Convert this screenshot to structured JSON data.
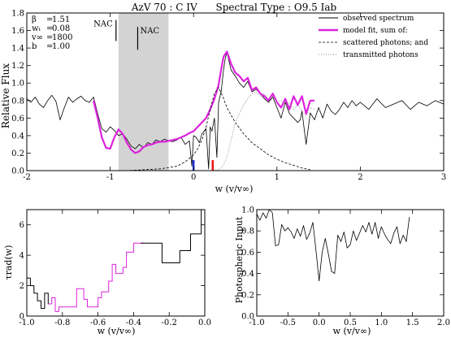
{
  "chart_data": [
    {
      "type": "line",
      "title": "AzV 70 : C IV      Spectral Type : O9.5 Iab",
      "xlabel": "w (v/v∞)",
      "ylabel": "Relative Flux",
      "xlim": [
        -2,
        3
      ],
      "ylim": [
        0,
        1.8
      ],
      "xticks": [
        -2,
        -1,
        0,
        1,
        2,
        3
      ],
      "yticks": [
        0.0,
        0.2,
        0.4,
        0.6,
        0.8,
        1.0,
        1.2,
        1.4,
        1.6,
        1.8
      ],
      "grid": false,
      "legend_position": "top-right",
      "parameters": [
        {
          "name": "β",
          "value": "1.51"
        },
        {
          "name": "wₜ",
          "value": "0.08"
        },
        {
          "name": "v∞",
          "value": "1800"
        },
        {
          "name": "b",
          "value": "1.00"
        }
      ],
      "shaded_region": {
        "x": [
          -0.9,
          -0.3
        ],
        "color": "#d3d3d3"
      },
      "annotations": [
        {
          "text": "NAC",
          "x": -0.93,
          "line_y": [
            1.48,
            1.72
          ]
        },
        {
          "text": "NAC",
          "x": -0.67,
          "line_y": [
            1.38,
            1.64
          ]
        }
      ],
      "markers": [
        {
          "x": 0.0,
          "y": [
            0.0,
            0.12
          ],
          "color": "#2233dd"
        },
        {
          "x": 0.23,
          "y": [
            0.0,
            0.12
          ],
          "color": "#ee1111"
        }
      ],
      "series": [
        {
          "name": "observed spectrum",
          "style": "solid",
          "color": "#000000",
          "x": [
            -2.0,
            -1.95,
            -1.9,
            -1.85,
            -1.8,
            -1.75,
            -1.7,
            -1.65,
            -1.6,
            -1.55,
            -1.5,
            -1.45,
            -1.4,
            -1.35,
            -1.3,
            -1.25,
            -1.2,
            -1.15,
            -1.1,
            -1.05,
            -1.0,
            -0.95,
            -0.9,
            -0.85,
            -0.8,
            -0.75,
            -0.7,
            -0.65,
            -0.6,
            -0.55,
            -0.5,
            -0.45,
            -0.4,
            -0.35,
            -0.3,
            -0.25,
            -0.2,
            -0.15,
            -0.1,
            -0.05,
            -0.02,
            0.0,
            0.03,
            0.07,
            0.1,
            0.15,
            0.18,
            0.2,
            0.22,
            0.25,
            0.28,
            0.3,
            0.33,
            0.36,
            0.38,
            0.4,
            0.45,
            0.5,
            0.55,
            0.6,
            0.65,
            0.7,
            0.75,
            0.8,
            0.85,
            0.9,
            0.95,
            1.0,
            1.05,
            1.1,
            1.15,
            1.2,
            1.25,
            1.28,
            1.3,
            1.35,
            1.4,
            1.45,
            1.5,
            1.55,
            1.6,
            1.65,
            1.7,
            1.75,
            1.8,
            1.85,
            1.9,
            1.95,
            2.0,
            2.1,
            2.2,
            2.3,
            2.4,
            2.5,
            2.6,
            2.7,
            2.8,
            2.9,
            3.0
          ],
          "y": [
            0.82,
            0.78,
            0.84,
            0.76,
            0.72,
            0.8,
            0.86,
            0.79,
            0.58,
            0.72,
            0.84,
            0.78,
            0.82,
            0.85,
            0.8,
            0.78,
            0.84,
            0.65,
            0.48,
            0.44,
            0.5,
            0.46,
            0.4,
            0.42,
            0.36,
            0.28,
            0.25,
            0.3,
            0.26,
            0.32,
            0.3,
            0.35,
            0.33,
            0.36,
            0.34,
            0.33,
            0.35,
            0.38,
            0.3,
            0.34,
            0.05,
            0.4,
            0.38,
            0.32,
            0.42,
            0.48,
            0.02,
            0.5,
            0.45,
            0.6,
            0.15,
            0.78,
            0.9,
            1.15,
            1.28,
            1.35,
            1.15,
            1.08,
            1.0,
            0.95,
            1.02,
            0.9,
            0.93,
            0.88,
            0.82,
            0.78,
            0.84,
            0.72,
            0.6,
            0.78,
            0.65,
            0.6,
            0.55,
            0.58,
            0.68,
            0.3,
            0.66,
            0.58,
            0.72,
            0.6,
            0.76,
            0.68,
            0.64,
            0.7,
            0.78,
            0.72,
            0.8,
            0.74,
            0.78,
            0.7,
            0.82,
            0.72,
            0.76,
            0.8,
            0.7,
            0.78,
            0.74,
            0.8,
            0.76
          ]
        },
        {
          "name": "model fit, sum of:",
          "style": "solid-thick",
          "color": "#dd22dd",
          "x": [
            -1.2,
            -1.15,
            -1.1,
            -1.05,
            -1.0,
            -0.95,
            -0.9,
            -0.85,
            -0.8,
            -0.75,
            -0.7,
            -0.65,
            -0.6,
            -0.55,
            -0.5,
            -0.45,
            -0.4,
            -0.35,
            -0.3,
            -0.25,
            -0.2,
            -0.15,
            -0.1,
            -0.05,
            0.0,
            0.05,
            0.1,
            0.15,
            0.2,
            0.25,
            0.3,
            0.33,
            0.36,
            0.4,
            0.45,
            0.5,
            0.55,
            0.6,
            0.65,
            0.7,
            0.75,
            0.8,
            0.85,
            0.9,
            0.95,
            1.0,
            1.05,
            1.1,
            1.15,
            1.2,
            1.25,
            1.3,
            1.35,
            1.4,
            1.45
          ],
          "y": [
            0.8,
            0.6,
            0.38,
            0.26,
            0.25,
            0.38,
            0.47,
            0.42,
            0.32,
            0.24,
            0.2,
            0.22,
            0.27,
            0.29,
            0.3,
            0.32,
            0.33,
            0.33,
            0.34,
            0.35,
            0.36,
            0.38,
            0.4,
            0.43,
            0.45,
            0.5,
            0.55,
            0.6,
            0.7,
            0.82,
            0.98,
            1.15,
            1.3,
            1.36,
            1.22,
            1.12,
            1.08,
            1.02,
            1.06,
            0.92,
            0.95,
            0.88,
            0.85,
            0.8,
            0.88,
            0.78,
            0.72,
            0.82,
            0.7,
            0.85,
            0.75,
            0.85,
            0.65,
            0.8,
            0.8
          ]
        },
        {
          "name": "scattered photons; and",
          "style": "dashed",
          "color": "#000000",
          "x": [
            -1.2,
            -1.0,
            -0.8,
            -0.6,
            -0.4,
            -0.2,
            -0.1,
            0.0,
            0.05,
            0.1,
            0.15,
            0.2,
            0.25,
            0.3,
            0.35,
            0.4,
            0.5,
            0.6,
            0.7,
            0.8,
            0.9,
            1.0,
            1.1,
            1.2,
            1.3,
            1.4
          ],
          "y": [
            0.0,
            0.0,
            0.0,
            0.01,
            0.02,
            0.05,
            0.1,
            0.18,
            0.25,
            0.35,
            0.5,
            0.7,
            0.88,
            0.95,
            0.85,
            0.72,
            0.55,
            0.42,
            0.32,
            0.25,
            0.18,
            0.13,
            0.09,
            0.06,
            0.03,
            0.01
          ]
        },
        {
          "name": "transmitted photons",
          "style": "dotted",
          "color": "#888888",
          "x": [
            0.0,
            0.1,
            0.2,
            0.3,
            0.35,
            0.4,
            0.45,
            0.5,
            0.55,
            0.6,
            0.65,
            0.7,
            0.75,
            0.8,
            0.85,
            0.9,
            0.95,
            1.0,
            1.05,
            1.1,
            1.15,
            1.2,
            1.25,
            1.3,
            1.35,
            1.4,
            1.45
          ],
          "y": [
            0.0,
            0.0,
            0.0,
            0.01,
            0.05,
            0.15,
            0.35,
            0.55,
            0.65,
            0.75,
            0.82,
            0.88,
            0.9,
            0.85,
            0.88,
            0.82,
            0.85,
            0.78,
            0.8,
            0.74,
            0.78,
            0.7,
            0.75,
            0.68,
            0.62,
            0.72,
            0.7
          ]
        }
      ]
    },
    {
      "type": "line",
      "title": "",
      "xlabel": "w (v/v∞)",
      "ylabel": "τrad(w)",
      "xlim": [
        -1.0,
        0.0
      ],
      "ylim": [
        0,
        7
      ],
      "xticks": [
        -1.0,
        -0.8,
        -0.6,
        -0.4,
        -0.2,
        0.0
      ],
      "yticks": [
        0,
        2,
        4,
        6
      ],
      "series": [
        {
          "name": "",
          "style": "step",
          "color": "#000000",
          "x": [
            -1.0,
            -0.98,
            -0.98,
            -0.96,
            -0.96,
            -0.94,
            -0.94,
            -0.92,
            -0.92,
            -0.9,
            -0.9,
            -0.88,
            -0.88,
            -0.86
          ],
          "y": [
            2.5,
            2.5,
            2.0,
            2.0,
            1.5,
            1.5,
            1.0,
            1.0,
            0.5,
            0.5,
            1.5,
            1.5,
            0.8,
            0.8
          ]
        },
        {
          "name": "",
          "style": "step",
          "color": "#dd22dd",
          "x": [
            -0.88,
            -0.86,
            -0.86,
            -0.84,
            -0.84,
            -0.82,
            -0.82,
            -0.8,
            -0.8,
            -0.78,
            -0.78,
            -0.74,
            -0.74,
            -0.72,
            -0.72,
            -0.68,
            -0.68,
            -0.66,
            -0.66,
            -0.64,
            -0.64,
            -0.6,
            -0.6,
            -0.58,
            -0.58,
            -0.54,
            -0.54,
            -0.52,
            -0.52,
            -0.5,
            -0.5,
            -0.46,
            -0.46,
            -0.44,
            -0.44,
            -0.42,
            -0.42,
            -0.4,
            -0.4,
            -0.36,
            -0.36,
            -0.34
          ],
          "y": [
            0.8,
            0.8,
            1.2,
            1.2,
            0.3,
            0.3,
            0.6,
            0.6,
            0.6,
            0.6,
            0.6,
            0.6,
            0.6,
            0.6,
            1.8,
            1.8,
            1.1,
            1.1,
            0.6,
            0.6,
            0.6,
            0.6,
            1.2,
            1.2,
            1.6,
            1.6,
            2.3,
            2.3,
            3.4,
            3.4,
            2.8,
            2.8,
            3.2,
            3.2,
            4.2,
            4.2,
            4.2,
            4.2,
            4.8,
            4.8,
            4.8,
            4.8
          ]
        },
        {
          "name": "",
          "style": "step",
          "color": "#000000",
          "x": [
            -0.36,
            -0.3,
            -0.3,
            -0.24,
            -0.24,
            -0.2,
            -0.2,
            -0.14,
            -0.14,
            -0.08,
            -0.08,
            -0.02,
            -0.02,
            0.0
          ],
          "y": [
            4.8,
            4.8,
            4.8,
            4.8,
            3.5,
            3.5,
            3.5,
            3.5,
            4.3,
            4.3,
            5.4,
            5.4,
            7.0,
            7.0
          ]
        }
      ]
    },
    {
      "type": "line",
      "title": "",
      "xlabel": "w (v/v∞)",
      "ylabel": "Photospheric Input",
      "xlim": [
        -1.0,
        2.0
      ],
      "ylim": [
        0,
        1.0
      ],
      "xticks": [
        -1.0,
        -0.5,
        0.0,
        0.5,
        1.0,
        1.5,
        2.0
      ],
      "yticks": [
        0.0,
        0.2,
        0.4,
        0.6,
        0.8,
        1.0
      ],
      "series": [
        {
          "name": "",
          "style": "solid",
          "color": "#000000",
          "x": [
            -1.0,
            -0.95,
            -0.9,
            -0.85,
            -0.8,
            -0.75,
            -0.7,
            -0.65,
            -0.6,
            -0.55,
            -0.5,
            -0.45,
            -0.4,
            -0.35,
            -0.3,
            -0.25,
            -0.2,
            -0.15,
            -0.1,
            -0.05,
            0.0,
            0.05,
            0.1,
            0.15,
            0.2,
            0.25,
            0.3,
            0.35,
            0.4,
            0.45,
            0.5,
            0.55,
            0.6,
            0.65,
            0.7,
            0.75,
            0.8,
            0.85,
            0.9,
            0.95,
            1.0,
            1.05,
            1.1,
            1.15,
            1.2,
            1.25,
            1.3,
            1.35,
            1.4,
            1.45
          ],
          "y": [
            0.96,
            0.9,
            0.97,
            0.92,
            1.0,
            0.97,
            0.66,
            0.67,
            0.86,
            0.8,
            0.83,
            0.79,
            0.73,
            0.82,
            0.75,
            0.85,
            0.72,
            0.78,
            0.88,
            0.62,
            0.33,
            0.6,
            0.73,
            0.58,
            0.42,
            0.4,
            0.76,
            0.7,
            0.79,
            0.64,
            0.67,
            0.8,
            0.71,
            0.78,
            0.85,
            0.79,
            0.88,
            0.77,
            0.88,
            0.73,
            0.84,
            0.77,
            0.72,
            0.68,
            0.78,
            0.84,
            0.68,
            0.76,
            0.7,
            0.93
          ]
        }
      ]
    }
  ]
}
